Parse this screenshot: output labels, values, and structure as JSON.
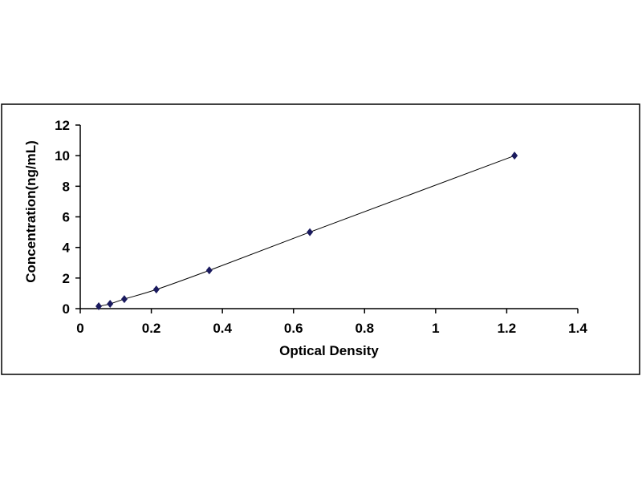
{
  "chart_data": {
    "type": "scatter",
    "title": "",
    "xlabel": "Optical Density",
    "ylabel": "Concentration(ng/mL)",
    "xlim": [
      0,
      1.4
    ],
    "ylim": [
      0,
      12
    ],
    "x_ticks": [
      "0",
      "0.2",
      "0.4",
      "0.6",
      "0.8",
      "1",
      "1.2",
      "1.4"
    ],
    "y_ticks": [
      "0",
      "2",
      "4",
      "6",
      "8",
      "10",
      "12"
    ],
    "grid": false,
    "legend": "none",
    "trendline": "smooth curve through points",
    "series": [
      {
        "x": [
          0.052,
          0.084,
          0.124,
          0.214,
          0.363,
          0.646,
          1.222
        ],
        "y": [
          0.156,
          0.312,
          0.625,
          1.25,
          2.5,
          5,
          10
        ],
        "color": "#1a1a5e",
        "marker": "diamond"
      }
    ]
  }
}
